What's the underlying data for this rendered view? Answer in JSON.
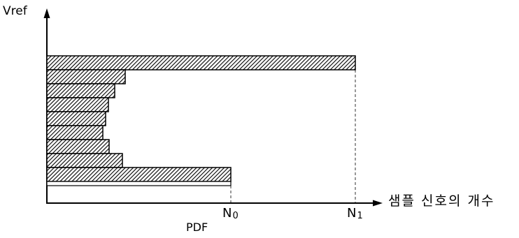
{
  "figure": {
    "y_axis_label": "Vref",
    "x_axis_label": "샘플 신호의 개수",
    "caption_label": "PDF",
    "tick_n0_main": "N",
    "tick_n0_sub": "0",
    "tick_n1_main": "N",
    "tick_n1_sub": "1"
  },
  "colors": {
    "ink": "#000000",
    "background": "#ffffff"
  }
}
